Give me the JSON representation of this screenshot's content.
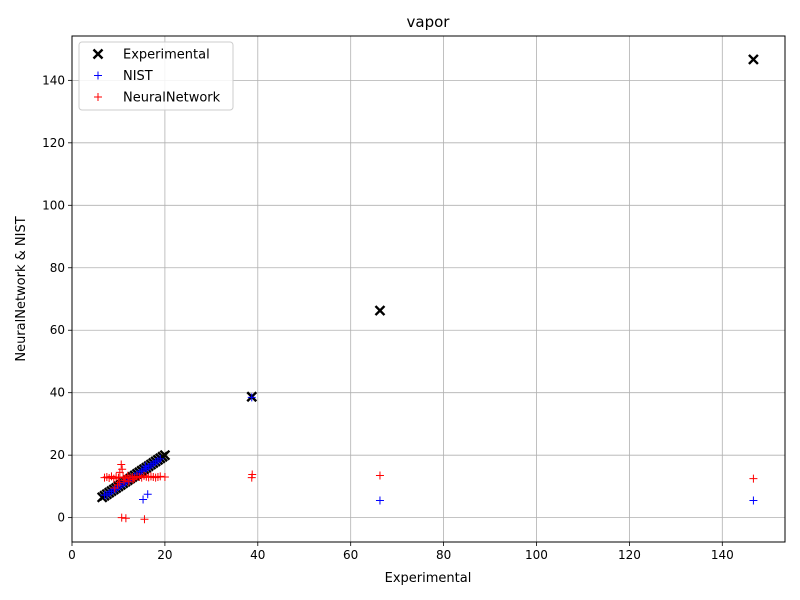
{
  "chart_data": {
    "type": "scatter",
    "title": "vapor",
    "xlabel": "Experimental",
    "ylabel": "NeuralNetwork & NIST",
    "xlim": [
      0,
      153.5
    ],
    "ylim": [
      -7.8,
      154.2
    ],
    "x_ticks": [
      0,
      20,
      40,
      60,
      80,
      100,
      120,
      140
    ],
    "y_ticks": [
      0,
      20,
      40,
      60,
      80,
      100,
      120,
      140
    ],
    "grid": true,
    "legend_position": "upper-left",
    "series": [
      {
        "name": "Experimental",
        "marker": "x",
        "color": "#000000",
        "points": [
          [
            6.5,
            6.5
          ],
          [
            7,
            7
          ],
          [
            7.5,
            7.5
          ],
          [
            8,
            8
          ],
          [
            8.5,
            8.5
          ],
          [
            9,
            9
          ],
          [
            9.5,
            9.5
          ],
          [
            10,
            10
          ],
          [
            10.5,
            10.5
          ],
          [
            11,
            11
          ],
          [
            11.5,
            11.5
          ],
          [
            12,
            12
          ],
          [
            12.5,
            12.5
          ],
          [
            13,
            13
          ],
          [
            13.5,
            13.5
          ],
          [
            14,
            14
          ],
          [
            14.5,
            14.5
          ],
          [
            15,
            15
          ],
          [
            15.5,
            15.5
          ],
          [
            16,
            16
          ],
          [
            16.5,
            16.5
          ],
          [
            17,
            17
          ],
          [
            17.5,
            17.5
          ],
          [
            18,
            18
          ],
          [
            18.5,
            18.5
          ],
          [
            19,
            19
          ],
          [
            19.5,
            19.5
          ],
          [
            20,
            20
          ],
          [
            38.7,
            38.7
          ],
          [
            66.3,
            66.3
          ],
          [
            146.7,
            146.7
          ]
        ]
      },
      {
        "name": "NIST",
        "marker": "+",
        "color": "#0000ff",
        "points": [
          [
            7,
            7.2
          ],
          [
            7.5,
            7.3
          ],
          [
            8,
            7.8
          ],
          [
            8.5,
            8.4
          ],
          [
            9,
            8.9
          ],
          [
            9.5,
            9.2
          ],
          [
            10,
            9.8
          ],
          [
            10.5,
            10.3
          ],
          [
            11,
            10.8
          ],
          [
            11.5,
            11.2
          ],
          [
            12,
            11.9
          ],
          [
            12.5,
            12.3
          ],
          [
            13,
            12.8
          ],
          [
            13.5,
            13.2
          ],
          [
            14,
            13.9
          ],
          [
            14.5,
            14.3
          ],
          [
            15,
            14.8
          ],
          [
            15.5,
            15.2
          ],
          [
            16,
            15.7
          ],
          [
            16.5,
            16.2
          ],
          [
            17,
            16.8
          ],
          [
            17.5,
            17.3
          ],
          [
            18,
            17.8
          ],
          [
            18.5,
            18.2
          ],
          [
            19,
            18.8
          ],
          [
            15.3,
            5.8
          ],
          [
            16.3,
            7.5
          ],
          [
            15.8,
            16.5
          ],
          [
            38.7,
            38.5
          ],
          [
            66.3,
            5.5
          ],
          [
            146.7,
            5.5
          ]
        ]
      },
      {
        "name": "NeuralNetwork",
        "marker": "+",
        "color": "#ff0000",
        "points": [
          [
            7,
            12.8
          ],
          [
            7.5,
            13
          ],
          [
            8,
            12.7
          ],
          [
            8.5,
            13.2
          ],
          [
            9,
            12.5
          ],
          [
            9.5,
            13
          ],
          [
            10,
            12.8
          ],
          [
            10.3,
            14.5
          ],
          [
            10.6,
            17
          ],
          [
            10.8,
            15.5
          ],
          [
            11,
            13
          ],
          [
            11.5,
            12.6
          ],
          [
            12,
            13.4
          ],
          [
            12.5,
            12.8
          ],
          [
            13,
            13
          ],
          [
            13.5,
            12.7
          ],
          [
            14,
            13.2
          ],
          [
            14.5,
            13
          ],
          [
            15,
            12.8
          ],
          [
            15.5,
            13.4
          ],
          [
            16,
            13.1
          ],
          [
            16.5,
            12.9
          ],
          [
            17,
            13.2
          ],
          [
            17.5,
            13
          ],
          [
            18,
            12.8
          ],
          [
            18.5,
            13
          ],
          [
            19,
            13.2
          ],
          [
            20,
            13
          ],
          [
            9.2,
            9.5
          ],
          [
            9.8,
            10.5
          ],
          [
            10.2,
            11.2
          ],
          [
            11.2,
            11.8
          ],
          [
            12.2,
            11.5
          ],
          [
            13.2,
            12.2
          ],
          [
            10.7,
            0
          ],
          [
            11.6,
            -0.2
          ],
          [
            15.6,
            -0.5
          ],
          [
            38.7,
            12.8
          ],
          [
            38.8,
            13.8
          ],
          [
            66.3,
            13.5
          ],
          [
            146.7,
            12.5
          ]
        ]
      }
    ]
  }
}
